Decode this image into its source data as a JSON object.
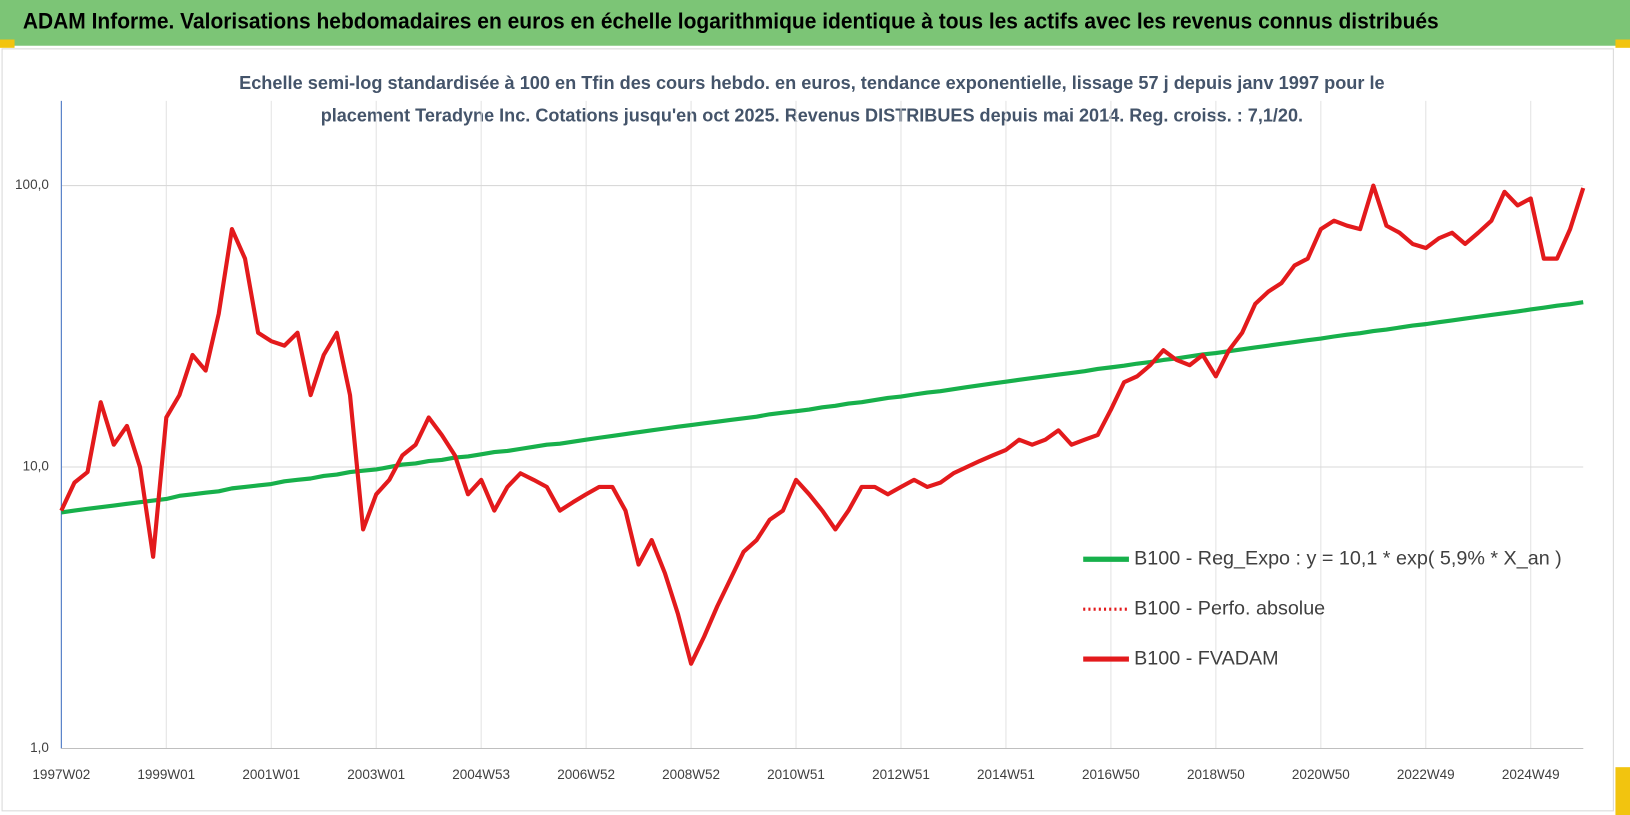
{
  "header": {
    "title": "ADAM Informe. Valorisations hebdomadaires en euros en échelle logarithmique identique à tous les actifs avec les revenus connus distribués"
  },
  "chart_data": {
    "type": "line",
    "title": [
      "Echelle semi-log standardisée à 100 en Tfin des cours hebdo. en euros, tendance exponentielle, lissage 57 j depuis janv 1997 pour le",
      "placement Teradyne Inc. Cotations jusqu'en oct 2025. Revenus DISTRIBUES depuis mai 2014. Reg. croiss. : 7,1/20."
    ],
    "log_y": true,
    "grid": true,
    "legend": "right",
    "ylim": [
      1,
      200
    ],
    "yticks": [
      {
        "value": 1,
        "label": "1,0"
      },
      {
        "value": 10,
        "label": "10,0"
      },
      {
        "value": 100,
        "label": "100,0"
      }
    ],
    "categories": [
      "1997W02",
      null,
      null,
      null,
      null,
      null,
      null,
      null,
      "1999W01",
      null,
      null,
      null,
      null,
      null,
      null,
      null,
      "2001W01",
      null,
      null,
      null,
      null,
      null,
      null,
      null,
      "2003W01",
      null,
      null,
      null,
      null,
      null,
      null,
      null,
      "2004W53",
      null,
      null,
      null,
      null,
      null,
      null,
      null,
      "2006W52",
      null,
      null,
      null,
      null,
      null,
      null,
      null,
      "2008W52",
      null,
      null,
      null,
      null,
      null,
      null,
      null,
      "2010W51",
      null,
      null,
      null,
      null,
      null,
      null,
      null,
      "2012W51",
      null,
      null,
      null,
      null,
      null,
      null,
      null,
      "2014W51",
      null,
      null,
      null,
      null,
      null,
      null,
      null,
      "2016W50",
      null,
      null,
      null,
      null,
      null,
      null,
      null,
      "2018W50",
      null,
      null,
      null,
      null,
      null,
      null,
      null,
      "2020W50",
      null,
      null,
      null,
      null,
      null,
      null,
      null,
      "2022W49",
      null,
      null,
      null,
      null,
      null,
      null,
      null,
      "2024W49",
      null,
      null,
      null,
      null
    ],
    "series": [
      {
        "name": "B100 - Reg_Expo : y = 10,1 * exp( 5,9% *  X_an )",
        "color": "#17b04b",
        "dash": "solid",
        "values": [
          6.9,
          7.0,
          7.1,
          7.2,
          7.3,
          7.4,
          7.5,
          7.6,
          7.7,
          7.9,
          8.0,
          8.1,
          8.2,
          8.4,
          8.5,
          8.6,
          8.7,
          8.9,
          9.0,
          9.1,
          9.3,
          9.4,
          9.6,
          9.7,
          9.8,
          10.0,
          10.2,
          10.3,
          10.5,
          10.6,
          10.8,
          10.9,
          11.1,
          11.3,
          11.4,
          11.6,
          11.8,
          12.0,
          12.1,
          12.3,
          12.5,
          12.7,
          12.9,
          13.1,
          13.3,
          13.5,
          13.7,
          13.9,
          14.1,
          14.3,
          14.5,
          14.7,
          14.9,
          15.1,
          15.4,
          15.6,
          15.8,
          16.0,
          16.3,
          16.5,
          16.8,
          17.0,
          17.3,
          17.6,
          17.8,
          18.1,
          18.4,
          18.6,
          18.9,
          19.2,
          19.5,
          19.8,
          20.1,
          20.4,
          20.7,
          21.0,
          21.3,
          21.6,
          21.9,
          22.3,
          22.6,
          22.9,
          23.3,
          23.6,
          24.0,
          24.3,
          24.7,
          25.1,
          25.4,
          25.8,
          26.2,
          26.6,
          27.0,
          27.4,
          27.8,
          28.2,
          28.6,
          29.1,
          29.5,
          29.9,
          30.4,
          30.8,
          31.3,
          31.8,
          32.2,
          32.7,
          33.2,
          33.7,
          34.2,
          34.7,
          35.2,
          35.7,
          36.3,
          36.8,
          37.4,
          37.9,
          38.5
        ]
      },
      {
        "name": "B100 - Perfo. absolue",
        "color": "#e31a1c",
        "dash": "dotted",
        "values": [
          7.0,
          8.8,
          9.6,
          17,
          12,
          14,
          10,
          4.8,
          15,
          18,
          25,
          22,
          35,
          70,
          55,
          30,
          28,
          27,
          30,
          18,
          25,
          30,
          18,
          6,
          8,
          9,
          11,
          12,
          15,
          13,
          11,
          8,
          9,
          7,
          8.5,
          9.5,
          9,
          8.5,
          7,
          7.5,
          8,
          8.5,
          8.5,
          7,
          4.5,
          5.5,
          4.2,
          3,
          2,
          2.5,
          3.2,
          4,
          5,
          5.5,
          6.5,
          7,
          9,
          8,
          7,
          6,
          7,
          8.5,
          8.5,
          8,
          8.5,
          9,
          8.5,
          8.8,
          9.5,
          10,
          10.5,
          11,
          11.5,
          12.5,
          12,
          12.5,
          13.5,
          12,
          12.5,
          13,
          16,
          20,
          21,
          23,
          26,
          24,
          23,
          25,
          21,
          26,
          30,
          38,
          42,
          45,
          52,
          55,
          70,
          75,
          72,
          70,
          100,
          72,
          68,
          62,
          60,
          65,
          68,
          62,
          68,
          75,
          95,
          85,
          90,
          55,
          55,
          70,
          98
        ]
      },
      {
        "name": "B100 - FVADAM",
        "color": "#e31a1c",
        "dash": "solid",
        "values": [
          7.0,
          8.8,
          9.6,
          17,
          12,
          14,
          10,
          4.8,
          15,
          18,
          25,
          22,
          35,
          70,
          55,
          30,
          28,
          27,
          30,
          18,
          25,
          30,
          18,
          6,
          8,
          9,
          11,
          12,
          15,
          13,
          11,
          8,
          9,
          7,
          8.5,
          9.5,
          9,
          8.5,
          7,
          7.5,
          8,
          8.5,
          8.5,
          7,
          4.5,
          5.5,
          4.2,
          3,
          2,
          2.5,
          3.2,
          4,
          5,
          5.5,
          6.5,
          7,
          9,
          8,
          7,
          6,
          7,
          8.5,
          8.5,
          8,
          8.5,
          9,
          8.5,
          8.8,
          9.5,
          10,
          10.5,
          11,
          11.5,
          12.5,
          12,
          12.5,
          13.5,
          12,
          12.5,
          13,
          16,
          20,
          21,
          23,
          26,
          24,
          23,
          25,
          21,
          26,
          30,
          38,
          42,
          45,
          52,
          55,
          70,
          75,
          72,
          70,
          100,
          72,
          68,
          62,
          60,
          65,
          68,
          62,
          68,
          75,
          95,
          85,
          90,
          55,
          55,
          70,
          98
        ]
      }
    ]
  }
}
